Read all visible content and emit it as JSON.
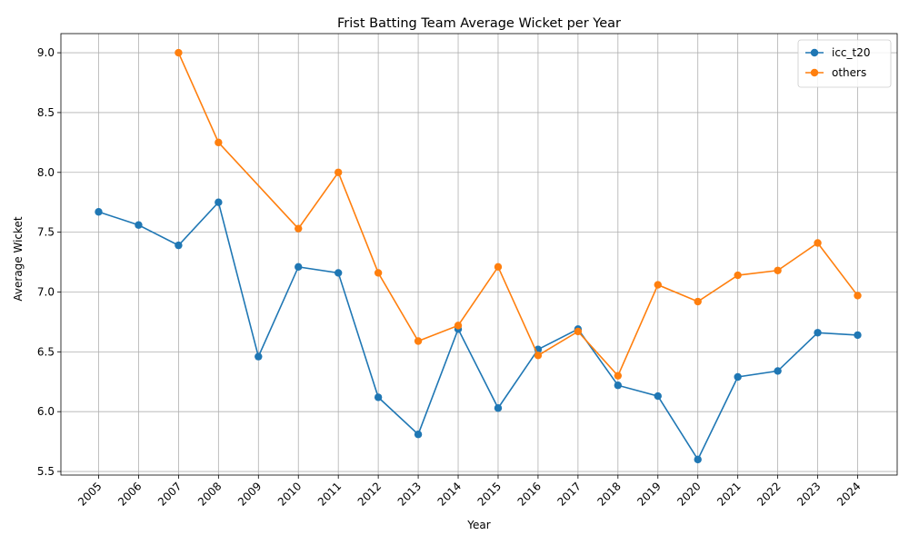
{
  "chart_data": {
    "type": "line",
    "title": "Frist Batting Team Average Wicket per Year",
    "xlabel": "Year",
    "ylabel": "Average Wicket",
    "categories": [
      "2005",
      "2006",
      "2007",
      "2008",
      "2009",
      "2010",
      "2011",
      "2012",
      "2013",
      "2014",
      "2015",
      "2016",
      "2017",
      "2018",
      "2019",
      "2020",
      "2021",
      "2022",
      "2023",
      "2024"
    ],
    "ylim": [
      5.47,
      9.16
    ],
    "yticks": [
      5.5,
      6.0,
      6.5,
      7.0,
      7.5,
      8.0,
      8.5,
      9.0
    ],
    "ytick_labels": [
      "5.5",
      "6.0",
      "6.5",
      "7.0",
      "7.5",
      "8.0",
      "8.5",
      "9.0"
    ],
    "grid": true,
    "legend_position": "top-right",
    "series": [
      {
        "name": "icc_t20",
        "color": "#1f77b4",
        "values": [
          7.67,
          7.56,
          7.39,
          7.75,
          6.46,
          7.21,
          7.16,
          6.12,
          5.81,
          6.69,
          6.03,
          6.52,
          6.69,
          6.22,
          6.13,
          5.6,
          6.29,
          6.34,
          6.66,
          6.64
        ]
      },
      {
        "name": "others",
        "color": "#ff7f0e",
        "values": [
          null,
          null,
          9.0,
          8.25,
          null,
          7.53,
          8.0,
          7.16,
          6.59,
          6.72,
          7.21,
          6.47,
          6.67,
          6.3,
          7.06,
          6.92,
          7.14,
          7.18,
          7.41,
          6.97
        ]
      }
    ]
  }
}
